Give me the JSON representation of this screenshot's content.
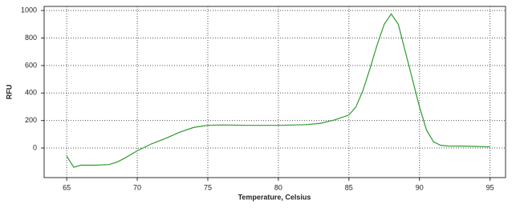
{
  "chart_data": {
    "type": "line",
    "xlabel": "Temperature, Celsius",
    "ylabel": "RFU",
    "x": [
      65,
      65.5,
      66,
      67,
      68,
      68.5,
      69,
      70,
      71,
      72,
      73,
      74,
      75,
      76,
      78,
      80,
      82,
      83,
      84,
      85,
      85.5,
      86,
      86.5,
      87,
      87.5,
      88,
      88.5,
      89,
      89.5,
      90,
      90.5,
      91,
      91.5,
      92,
      93,
      94,
      95
    ],
    "series": [
      {
        "name": "RFU",
        "color": "#2e9a2e",
        "values": [
          -60,
          -140,
          -125,
          -125,
          -120,
          -105,
          -80,
          -20,
          30,
          70,
          115,
          150,
          165,
          168,
          165,
          165,
          170,
          180,
          205,
          240,
          300,
          420,
          580,
          750,
          900,
          975,
          900,
          700,
          500,
          300,
          130,
          45,
          20,
          15,
          14,
          12,
          8
        ]
      }
    ],
    "xlim": [
      63.4,
      96.1
    ],
    "xticks": [
      65,
      70,
      75,
      80,
      85,
      90,
      95
    ],
    "ylim": [
      -215,
      1030
    ],
    "yticks": [
      0,
      200,
      400,
      600,
      800,
      1000
    ],
    "grid": true
  }
}
